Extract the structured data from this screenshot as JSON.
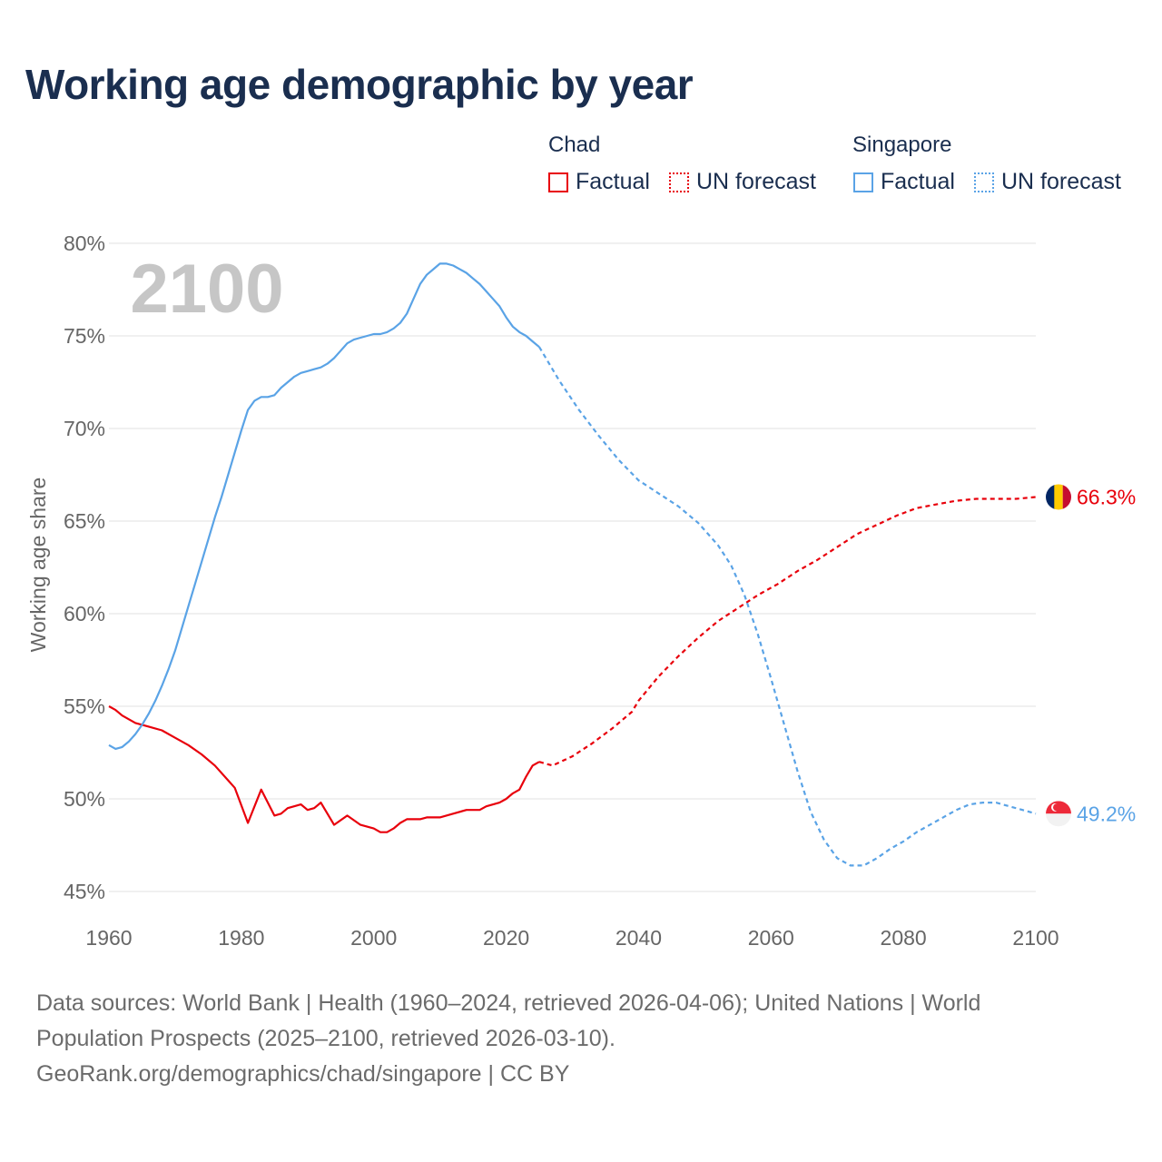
{
  "title": "Working age demographic by year",
  "legend": {
    "groups": [
      {
        "name": "Chad",
        "color": "#e8000b",
        "factual_label": "Factual",
        "forecast_label": "UN forecast"
      },
      {
        "name": "Singapore",
        "color": "#5aa3e6",
        "factual_label": "Factual",
        "forecast_label": "UN forecast"
      }
    ]
  },
  "chart_data": {
    "type": "line",
    "title": "Working age demographic by year",
    "xlabel": "",
    "ylabel": "Working age share",
    "xlim": [
      1960,
      2100
    ],
    "ylim": [
      45,
      80
    ],
    "x_ticks": [
      1960,
      1980,
      2000,
      2020,
      2040,
      2060,
      2080,
      2100
    ],
    "y_ticks": [
      45,
      50,
      55,
      60,
      65,
      70,
      75,
      80
    ],
    "y_tick_labels": [
      "45%",
      "50%",
      "55%",
      "60%",
      "65%",
      "70%",
      "75%",
      "80%"
    ],
    "x_tick_labels": [
      "1960",
      "1980",
      "2000",
      "2020",
      "2040",
      "2060",
      "2080",
      "2100"
    ],
    "year_label": "2100",
    "factual_range": [
      1960,
      2024
    ],
    "forecast_range": [
      2025,
      2100
    ],
    "series": [
      {
        "name": "Chad",
        "color": "#e8000b",
        "flag": "chad-flag-icon",
        "end_label": "66.3%",
        "points": [
          [
            1960,
            55.0
          ],
          [
            1961,
            54.8
          ],
          [
            1962,
            54.5
          ],
          [
            1963,
            54.3
          ],
          [
            1964,
            54.1
          ],
          [
            1965,
            54.0
          ],
          [
            1966,
            53.9
          ],
          [
            1968,
            53.7
          ],
          [
            1970,
            53.3
          ],
          [
            1972,
            52.9
          ],
          [
            1974,
            52.4
          ],
          [
            1976,
            51.8
          ],
          [
            1978,
            51.0
          ],
          [
            1979,
            50.6
          ],
          [
            1981,
            48.7
          ],
          [
            1983,
            50.5
          ],
          [
            1985,
            49.1
          ],
          [
            1986,
            49.2
          ],
          [
            1987,
            49.5
          ],
          [
            1989,
            49.7
          ],
          [
            1990,
            49.4
          ],
          [
            1991,
            49.5
          ],
          [
            1992,
            49.8
          ],
          [
            1994,
            48.6
          ],
          [
            1996,
            49.1
          ],
          [
            1998,
            48.6
          ],
          [
            2000,
            48.4
          ],
          [
            2001,
            48.2
          ],
          [
            2002,
            48.2
          ],
          [
            2003,
            48.4
          ],
          [
            2004,
            48.7
          ],
          [
            2005,
            48.9
          ],
          [
            2007,
            48.9
          ],
          [
            2008,
            49.0
          ],
          [
            2010,
            49.0
          ],
          [
            2012,
            49.2
          ],
          [
            2014,
            49.4
          ],
          [
            2016,
            49.4
          ],
          [
            2017,
            49.6
          ],
          [
            2019,
            49.8
          ],
          [
            2020,
            50.0
          ],
          [
            2021,
            50.3
          ],
          [
            2022,
            50.5
          ],
          [
            2023,
            51.2
          ],
          [
            2024,
            51.8
          ],
          [
            2025,
            52.0
          ],
          [
            2027,
            51.8
          ],
          [
            2030,
            52.3
          ],
          [
            2033,
            53.0
          ],
          [
            2036,
            53.8
          ],
          [
            2039,
            54.7
          ],
          [
            2040,
            55.3
          ],
          [
            2043,
            56.6
          ],
          [
            2046,
            57.7
          ],
          [
            2049,
            58.7
          ],
          [
            2052,
            59.6
          ],
          [
            2055,
            60.3
          ],
          [
            2058,
            61.0
          ],
          [
            2061,
            61.6
          ],
          [
            2064,
            62.3
          ],
          [
            2067,
            62.9
          ],
          [
            2070,
            63.6
          ],
          [
            2073,
            64.3
          ],
          [
            2076,
            64.8
          ],
          [
            2079,
            65.3
          ],
          [
            2082,
            65.7
          ],
          [
            2085,
            65.9
          ],
          [
            2088,
            66.1
          ],
          [
            2091,
            66.2
          ],
          [
            2094,
            66.2
          ],
          [
            2097,
            66.2
          ],
          [
            2100,
            66.3
          ]
        ]
      },
      {
        "name": "Singapore",
        "color": "#5aa3e6",
        "flag": "singapore-flag-icon",
        "end_label": "49.2%",
        "points": [
          [
            1960,
            52.9
          ],
          [
            1961,
            52.7
          ],
          [
            1962,
            52.8
          ],
          [
            1963,
            53.1
          ],
          [
            1964,
            53.5
          ],
          [
            1965,
            54.0
          ],
          [
            1966,
            54.6
          ],
          [
            1967,
            55.3
          ],
          [
            1968,
            56.1
          ],
          [
            1969,
            57.0
          ],
          [
            1970,
            58.0
          ],
          [
            1971,
            59.2
          ],
          [
            1972,
            60.4
          ],
          [
            1973,
            61.6
          ],
          [
            1974,
            62.8
          ],
          [
            1975,
            64.0
          ],
          [
            1976,
            65.2
          ],
          [
            1977,
            66.3
          ],
          [
            1978,
            67.5
          ],
          [
            1979,
            68.7
          ],
          [
            1980,
            69.9
          ],
          [
            1981,
            71.0
          ],
          [
            1982,
            71.5
          ],
          [
            1983,
            71.7
          ],
          [
            1984,
            71.7
          ],
          [
            1985,
            71.8
          ],
          [
            1986,
            72.2
          ],
          [
            1987,
            72.5
          ],
          [
            1988,
            72.8
          ],
          [
            1989,
            73.0
          ],
          [
            1990,
            73.1
          ],
          [
            1991,
            73.2
          ],
          [
            1992,
            73.3
          ],
          [
            1993,
            73.5
          ],
          [
            1994,
            73.8
          ],
          [
            1995,
            74.2
          ],
          [
            1996,
            74.6
          ],
          [
            1997,
            74.8
          ],
          [
            1998,
            74.9
          ],
          [
            1999,
            75.0
          ],
          [
            2000,
            75.1
          ],
          [
            2001,
            75.1
          ],
          [
            2002,
            75.2
          ],
          [
            2003,
            75.4
          ],
          [
            2004,
            75.7
          ],
          [
            2005,
            76.2
          ],
          [
            2006,
            77.0
          ],
          [
            2007,
            77.8
          ],
          [
            2008,
            78.3
          ],
          [
            2009,
            78.6
          ],
          [
            2010,
            78.9
          ],
          [
            2011,
            78.9
          ],
          [
            2012,
            78.8
          ],
          [
            2013,
            78.6
          ],
          [
            2014,
            78.4
          ],
          [
            2015,
            78.1
          ],
          [
            2016,
            77.8
          ],
          [
            2017,
            77.4
          ],
          [
            2018,
            77.0
          ],
          [
            2019,
            76.6
          ],
          [
            2020,
            76.0
          ],
          [
            2021,
            75.5
          ],
          [
            2022,
            75.2
          ],
          [
            2023,
            75.0
          ],
          [
            2024,
            74.7
          ],
          [
            2025,
            74.4
          ],
          [
            2028,
            72.6
          ],
          [
            2031,
            71.0
          ],
          [
            2034,
            69.6
          ],
          [
            2037,
            68.3
          ],
          [
            2040,
            67.2
          ],
          [
            2043,
            66.5
          ],
          [
            2046,
            65.8
          ],
          [
            2049,
            64.9
          ],
          [
            2052,
            63.7
          ],
          [
            2054,
            62.6
          ],
          [
            2056,
            61.0
          ],
          [
            2058,
            58.9
          ],
          [
            2060,
            56.5
          ],
          [
            2062,
            54.0
          ],
          [
            2064,
            51.5
          ],
          [
            2066,
            49.3
          ],
          [
            2068,
            47.8
          ],
          [
            2070,
            46.8
          ],
          [
            2072,
            46.4
          ],
          [
            2074,
            46.4
          ],
          [
            2076,
            46.8
          ],
          [
            2078,
            47.3
          ],
          [
            2080,
            47.7
          ],
          [
            2082,
            48.2
          ],
          [
            2084,
            48.6
          ],
          [
            2086,
            49.0
          ],
          [
            2088,
            49.4
          ],
          [
            2090,
            49.7
          ],
          [
            2092,
            49.8
          ],
          [
            2094,
            49.8
          ],
          [
            2096,
            49.6
          ],
          [
            2098,
            49.4
          ],
          [
            2100,
            49.2
          ]
        ]
      }
    ]
  },
  "footer": {
    "line1": "Data sources: World Bank | Health (1960–2024, retrieved 2026-04-06); United Nations | World",
    "line2": "Population Prospects (2025–2100, retrieved 2026-03-10).",
    "line3": "GeoRank.org/demographics/chad/singapore | CC BY"
  }
}
